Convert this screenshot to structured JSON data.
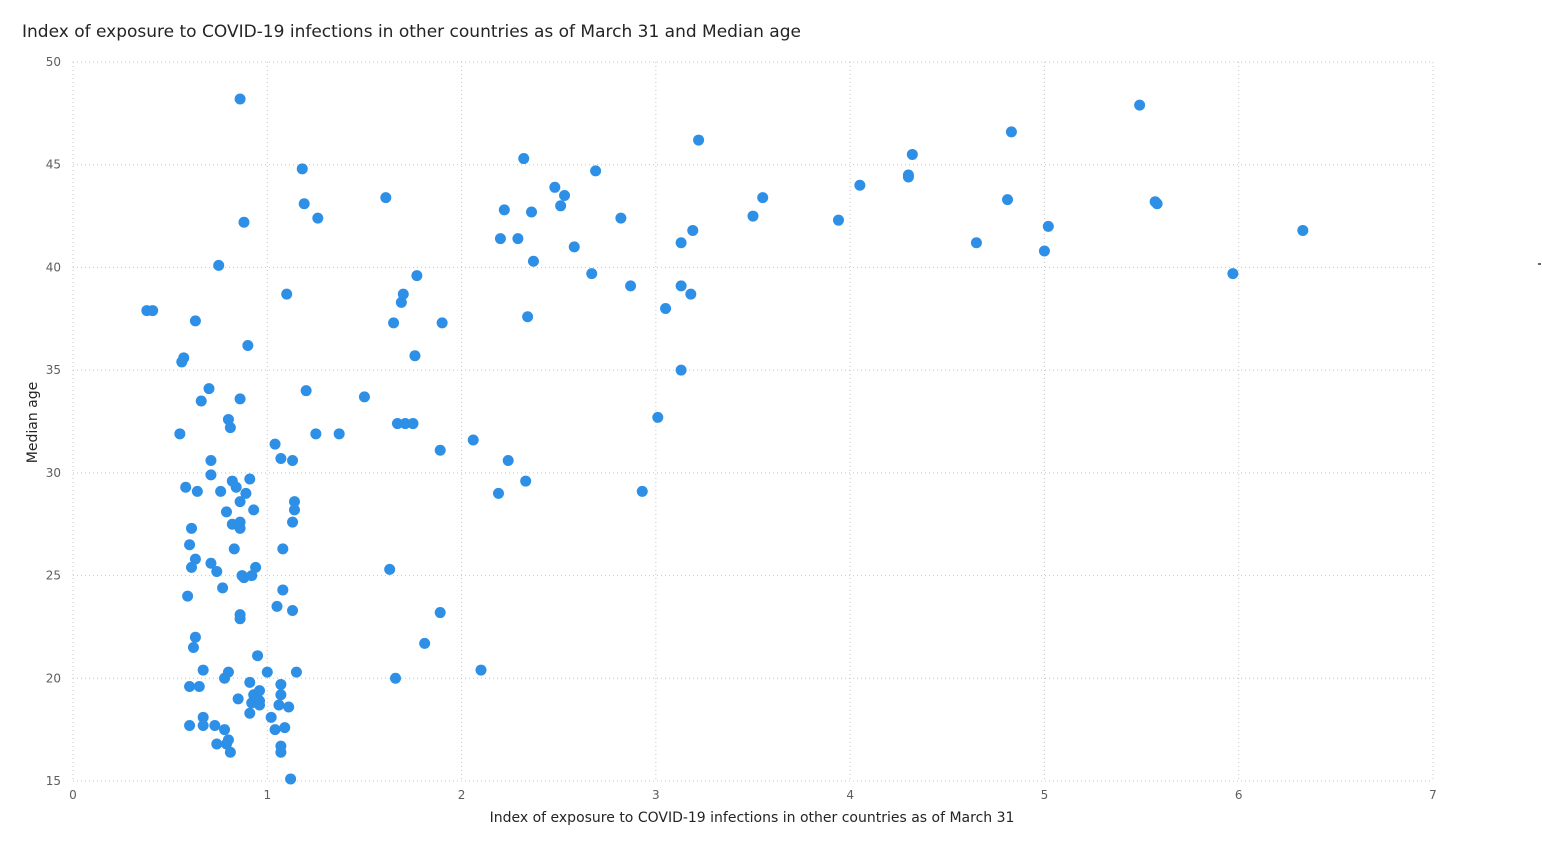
{
  "chart_data": {
    "type": "scatter",
    "title": "Index of exposure to COVID-19 infections in other countries as of March 31 and Median age",
    "xlabel": "Index of exposure to COVID-19 infections in other countries as of March 31",
    "ylabel": "Median age",
    "xlim": [
      0,
      7
    ],
    "ylim": [
      15,
      50
    ],
    "xticks": [
      "0",
      "1",
      "2",
      "3",
      "4",
      "5",
      "6",
      "7"
    ],
    "yticks": [
      "15",
      "20",
      "25",
      "30",
      "35",
      "40",
      "45",
      "50"
    ],
    "grid": true,
    "marker_color": "#2d8fe6",
    "points": [
      [
        0.38,
        37.9
      ],
      [
        0.41,
        37.9
      ],
      [
        0.55,
        31.9
      ],
      [
        0.56,
        35.4
      ],
      [
        0.57,
        35.6
      ],
      [
        0.58,
        29.3
      ],
      [
        0.59,
        24.0
      ],
      [
        0.6,
        26.5
      ],
      [
        0.6,
        17.7
      ],
      [
        0.6,
        19.6
      ],
      [
        0.61,
        27.3
      ],
      [
        0.61,
        25.4
      ],
      [
        0.62,
        21.5
      ],
      [
        0.63,
        22.0
      ],
      [
        0.63,
        25.8
      ],
      [
        0.63,
        37.4
      ],
      [
        0.64,
        29.1
      ],
      [
        0.65,
        19.6
      ],
      [
        0.66,
        33.5
      ],
      [
        0.67,
        20.4
      ],
      [
        0.67,
        18.1
      ],
      [
        0.67,
        17.7
      ],
      [
        0.7,
        34.1
      ],
      [
        0.71,
        30.6
      ],
      [
        0.71,
        29.9
      ],
      [
        0.71,
        25.6
      ],
      [
        0.73,
        17.7
      ],
      [
        0.74,
        25.2
      ],
      [
        0.74,
        16.8
      ],
      [
        0.75,
        40.1
      ],
      [
        0.76,
        29.1
      ],
      [
        0.77,
        24.4
      ],
      [
        0.78,
        20.0
      ],
      [
        0.78,
        17.5
      ],
      [
        0.79,
        28.1
      ],
      [
        0.79,
        16.8
      ],
      [
        0.8,
        20.3
      ],
      [
        0.8,
        17.0
      ],
      [
        0.8,
        32.6
      ],
      [
        0.81,
        32.2
      ],
      [
        0.81,
        16.4
      ],
      [
        0.82,
        29.6
      ],
      [
        0.82,
        27.5
      ],
      [
        0.83,
        26.3
      ],
      [
        0.84,
        29.3
      ],
      [
        0.85,
        19.0
      ],
      [
        0.86,
        48.2
      ],
      [
        0.86,
        33.6
      ],
      [
        0.86,
        28.6
      ],
      [
        0.86,
        27.6
      ],
      [
        0.86,
        27.3
      ],
      [
        0.86,
        23.1
      ],
      [
        0.86,
        22.9
      ],
      [
        0.87,
        25.0
      ],
      [
        0.88,
        42.2
      ],
      [
        0.88,
        24.9
      ],
      [
        0.89,
        29.0
      ],
      [
        0.9,
        36.2
      ],
      [
        0.91,
        29.7
      ],
      [
        0.91,
        19.8
      ],
      [
        0.91,
        18.3
      ],
      [
        0.92,
        25.0
      ],
      [
        0.92,
        18.8
      ],
      [
        0.93,
        28.2
      ],
      [
        0.93,
        19.2
      ],
      [
        0.94,
        25.4
      ],
      [
        0.95,
        21.1
      ],
      [
        0.95,
        19.0
      ],
      [
        0.96,
        19.4
      ],
      [
        0.96,
        18.9
      ],
      [
        0.96,
        18.7
      ],
      [
        1.0,
        20.3
      ],
      [
        1.02,
        18.1
      ],
      [
        1.04,
        31.4
      ],
      [
        1.04,
        17.5
      ],
      [
        1.05,
        23.5
      ],
      [
        1.06,
        18.7
      ],
      [
        1.07,
        30.7
      ],
      [
        1.07,
        19.7
      ],
      [
        1.07,
        19.2
      ],
      [
        1.07,
        16.7
      ],
      [
        1.07,
        16.4
      ],
      [
        1.08,
        26.3
      ],
      [
        1.08,
        24.3
      ],
      [
        1.09,
        17.6
      ],
      [
        1.1,
        38.7
      ],
      [
        1.11,
        18.6
      ],
      [
        1.12,
        15.1
      ],
      [
        1.13,
        30.6
      ],
      [
        1.13,
        27.6
      ],
      [
        1.13,
        23.3
      ],
      [
        1.14,
        28.6
      ],
      [
        1.14,
        28.2
      ],
      [
        1.15,
        20.3
      ],
      [
        1.18,
        44.8
      ],
      [
        1.19,
        43.1
      ],
      [
        1.2,
        34.0
      ],
      [
        1.25,
        31.9
      ],
      [
        1.26,
        42.4
      ],
      [
        1.37,
        31.9
      ],
      [
        1.5,
        33.7
      ],
      [
        1.61,
        43.4
      ],
      [
        1.63,
        25.3
      ],
      [
        1.65,
        37.3
      ],
      [
        1.66,
        20.0
      ],
      [
        1.67,
        32.4
      ],
      [
        1.69,
        38.3
      ],
      [
        1.7,
        38.7
      ],
      [
        1.71,
        32.4
      ],
      [
        1.75,
        32.4
      ],
      [
        1.76,
        35.7
      ],
      [
        1.77,
        39.6
      ],
      [
        1.81,
        21.7
      ],
      [
        1.89,
        31.1
      ],
      [
        1.89,
        23.2
      ],
      [
        1.9,
        37.3
      ],
      [
        2.06,
        31.6
      ],
      [
        2.1,
        20.4
      ],
      [
        2.19,
        29.0
      ],
      [
        2.2,
        41.4
      ],
      [
        2.22,
        42.8
      ],
      [
        2.24,
        30.6
      ],
      [
        2.29,
        41.4
      ],
      [
        2.32,
        45.3
      ],
      [
        2.33,
        29.6
      ],
      [
        2.34,
        37.6
      ],
      [
        2.36,
        42.7
      ],
      [
        2.37,
        40.3
      ],
      [
        2.48,
        43.9
      ],
      [
        2.51,
        43.0
      ],
      [
        2.53,
        43.5
      ],
      [
        2.58,
        41.0
      ],
      [
        2.67,
        39.7
      ],
      [
        2.69,
        44.7
      ],
      [
        2.82,
        42.4
      ],
      [
        2.87,
        39.1
      ],
      [
        2.93,
        29.1
      ],
      [
        3.01,
        32.7
      ],
      [
        3.05,
        38.0
      ],
      [
        3.13,
        41.2
      ],
      [
        3.13,
        39.1
      ],
      [
        3.13,
        35.0
      ],
      [
        3.18,
        38.7
      ],
      [
        3.19,
        41.8
      ],
      [
        3.22,
        46.2
      ],
      [
        3.5,
        42.5
      ],
      [
        3.55,
        43.4
      ],
      [
        3.94,
        42.3
      ],
      [
        4.05,
        44.0
      ],
      [
        4.3,
        44.5
      ],
      [
        4.3,
        44.4
      ],
      [
        4.32,
        45.5
      ],
      [
        4.65,
        41.2
      ],
      [
        4.81,
        43.3
      ],
      [
        4.83,
        46.6
      ],
      [
        5.0,
        40.8
      ],
      [
        5.02,
        42.0
      ],
      [
        5.49,
        47.9
      ],
      [
        5.57,
        43.2
      ],
      [
        5.58,
        43.1
      ],
      [
        5.97,
        39.7
      ],
      [
        6.33,
        41.8
      ]
    ]
  }
}
